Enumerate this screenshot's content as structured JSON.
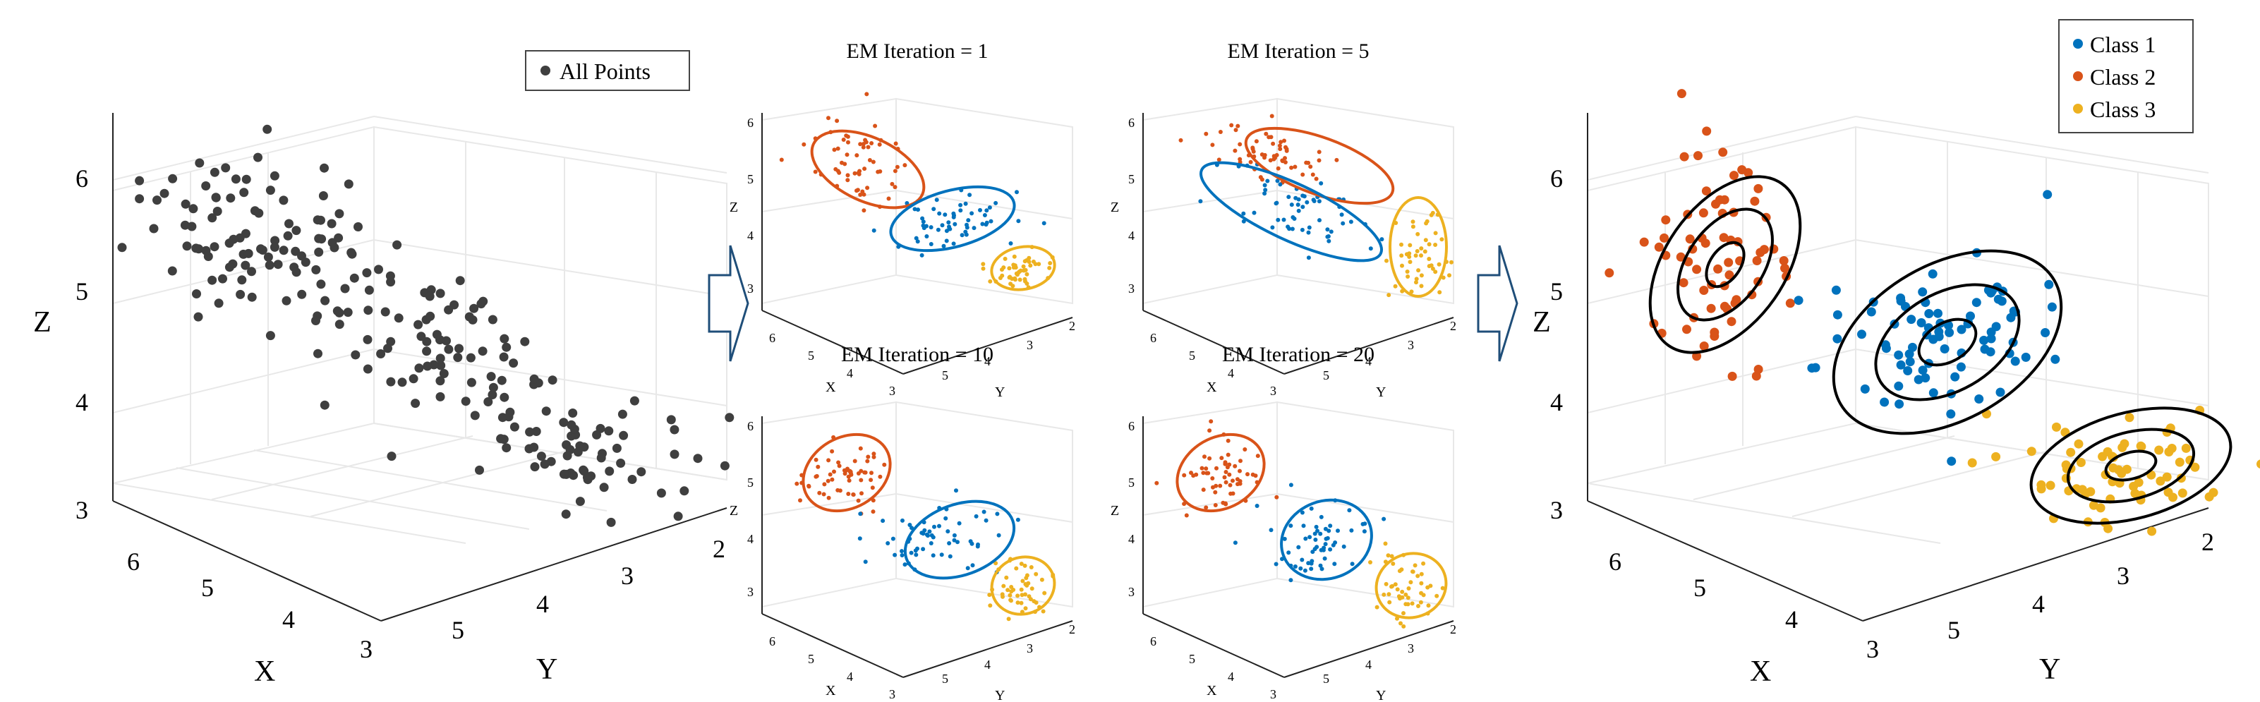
{
  "colors": {
    "all_points": "#3f3f3f",
    "class1": "#0072bd",
    "class2": "#d95319",
    "class3": "#edb120",
    "contour": "#000000",
    "arrow": "#1f4e79"
  },
  "chart_data": [
    {
      "type": "scatter",
      "title": "",
      "xlabel": "X",
      "ylabel": "Y",
      "zlabel": "Z",
      "xlim": [
        3,
        6.5
      ],
      "ylim": [
        2,
        5.5
      ],
      "zlim": [
        3,
        6.5
      ],
      "x_ticks": [
        "3",
        "4",
        "5",
        "6"
      ],
      "y_ticks": [
        "2",
        "3",
        "4",
        "5"
      ],
      "z_ticks": [
        "3",
        "4",
        "5",
        "6"
      ],
      "legend": [
        "All Points"
      ],
      "legend_position": "top-right",
      "series": [
        {
          "name": "All Points",
          "n_points": 240
        }
      ]
    },
    {
      "type": "scatter",
      "title": "EM Iteration = 1",
      "xlabel": "X",
      "ylabel": "Y",
      "zlabel": "Z",
      "x_ticks": [
        "3",
        "4",
        "5",
        "6"
      ],
      "y_ticks": [
        "2",
        "3",
        "4",
        "5"
      ],
      "z_ticks": [
        "3",
        "4",
        "5",
        "6"
      ],
      "series": [
        {
          "name": "Class 1"
        },
        {
          "name": "Class 2"
        },
        {
          "name": "Class 3"
        }
      ]
    },
    {
      "type": "scatter",
      "title": "EM Iteration = 5",
      "xlabel": "X",
      "ylabel": "Y",
      "zlabel": "Z",
      "x_ticks": [
        "3",
        "4",
        "5",
        "6"
      ],
      "y_ticks": [
        "2",
        "3",
        "4",
        "5"
      ],
      "z_ticks": [
        "3",
        "4",
        "5",
        "6"
      ],
      "series": [
        {
          "name": "Class 1"
        },
        {
          "name": "Class 2"
        },
        {
          "name": "Class 3"
        }
      ]
    },
    {
      "type": "scatter",
      "title": "EM Iteration = 10",
      "xlabel": "X",
      "ylabel": "Y",
      "zlabel": "Z",
      "x_ticks": [
        "3",
        "4",
        "5",
        "6"
      ],
      "y_ticks": [
        "2",
        "3",
        "4",
        "5"
      ],
      "z_ticks": [
        "3",
        "4",
        "5",
        "6"
      ],
      "series": [
        {
          "name": "Class 1"
        },
        {
          "name": "Class 2"
        },
        {
          "name": "Class 3"
        }
      ]
    },
    {
      "type": "scatter",
      "title": "EM Iteration = 20",
      "xlabel": "X",
      "ylabel": "Y",
      "zlabel": "Z",
      "x_ticks": [
        "3",
        "4",
        "5",
        "6"
      ],
      "y_ticks": [
        "2",
        "3",
        "4",
        "5"
      ],
      "z_ticks": [
        "3",
        "4",
        "5",
        "6"
      ],
      "series": [
        {
          "name": "Class 1"
        },
        {
          "name": "Class 2"
        },
        {
          "name": "Class 3"
        }
      ]
    },
    {
      "type": "scatter",
      "title": "",
      "xlabel": "X",
      "ylabel": "Y",
      "zlabel": "Z",
      "xlim": [
        3,
        6.5
      ],
      "ylim": [
        2,
        5.5
      ],
      "zlim": [
        3,
        6.5
      ],
      "x_ticks": [
        "3",
        "4",
        "5",
        "6"
      ],
      "y_ticks": [
        "2",
        "3",
        "4",
        "5"
      ],
      "z_ticks": [
        "3",
        "4",
        "5",
        "6"
      ],
      "legend": [
        "Class 1",
        "Class 2",
        "Class 3"
      ],
      "legend_position": "top-right",
      "series": [
        {
          "name": "Class 1",
          "mean": [
            4.8,
            3.8,
            4.9
          ]
        },
        {
          "name": "Class 2",
          "mean": [
            5.8,
            5.0,
            5.6
          ]
        },
        {
          "name": "Class 3",
          "mean": [
            3.8,
            2.7,
            3.5
          ]
        }
      ],
      "contours": "Gaussian density contours, 3 levels per class"
    }
  ]
}
